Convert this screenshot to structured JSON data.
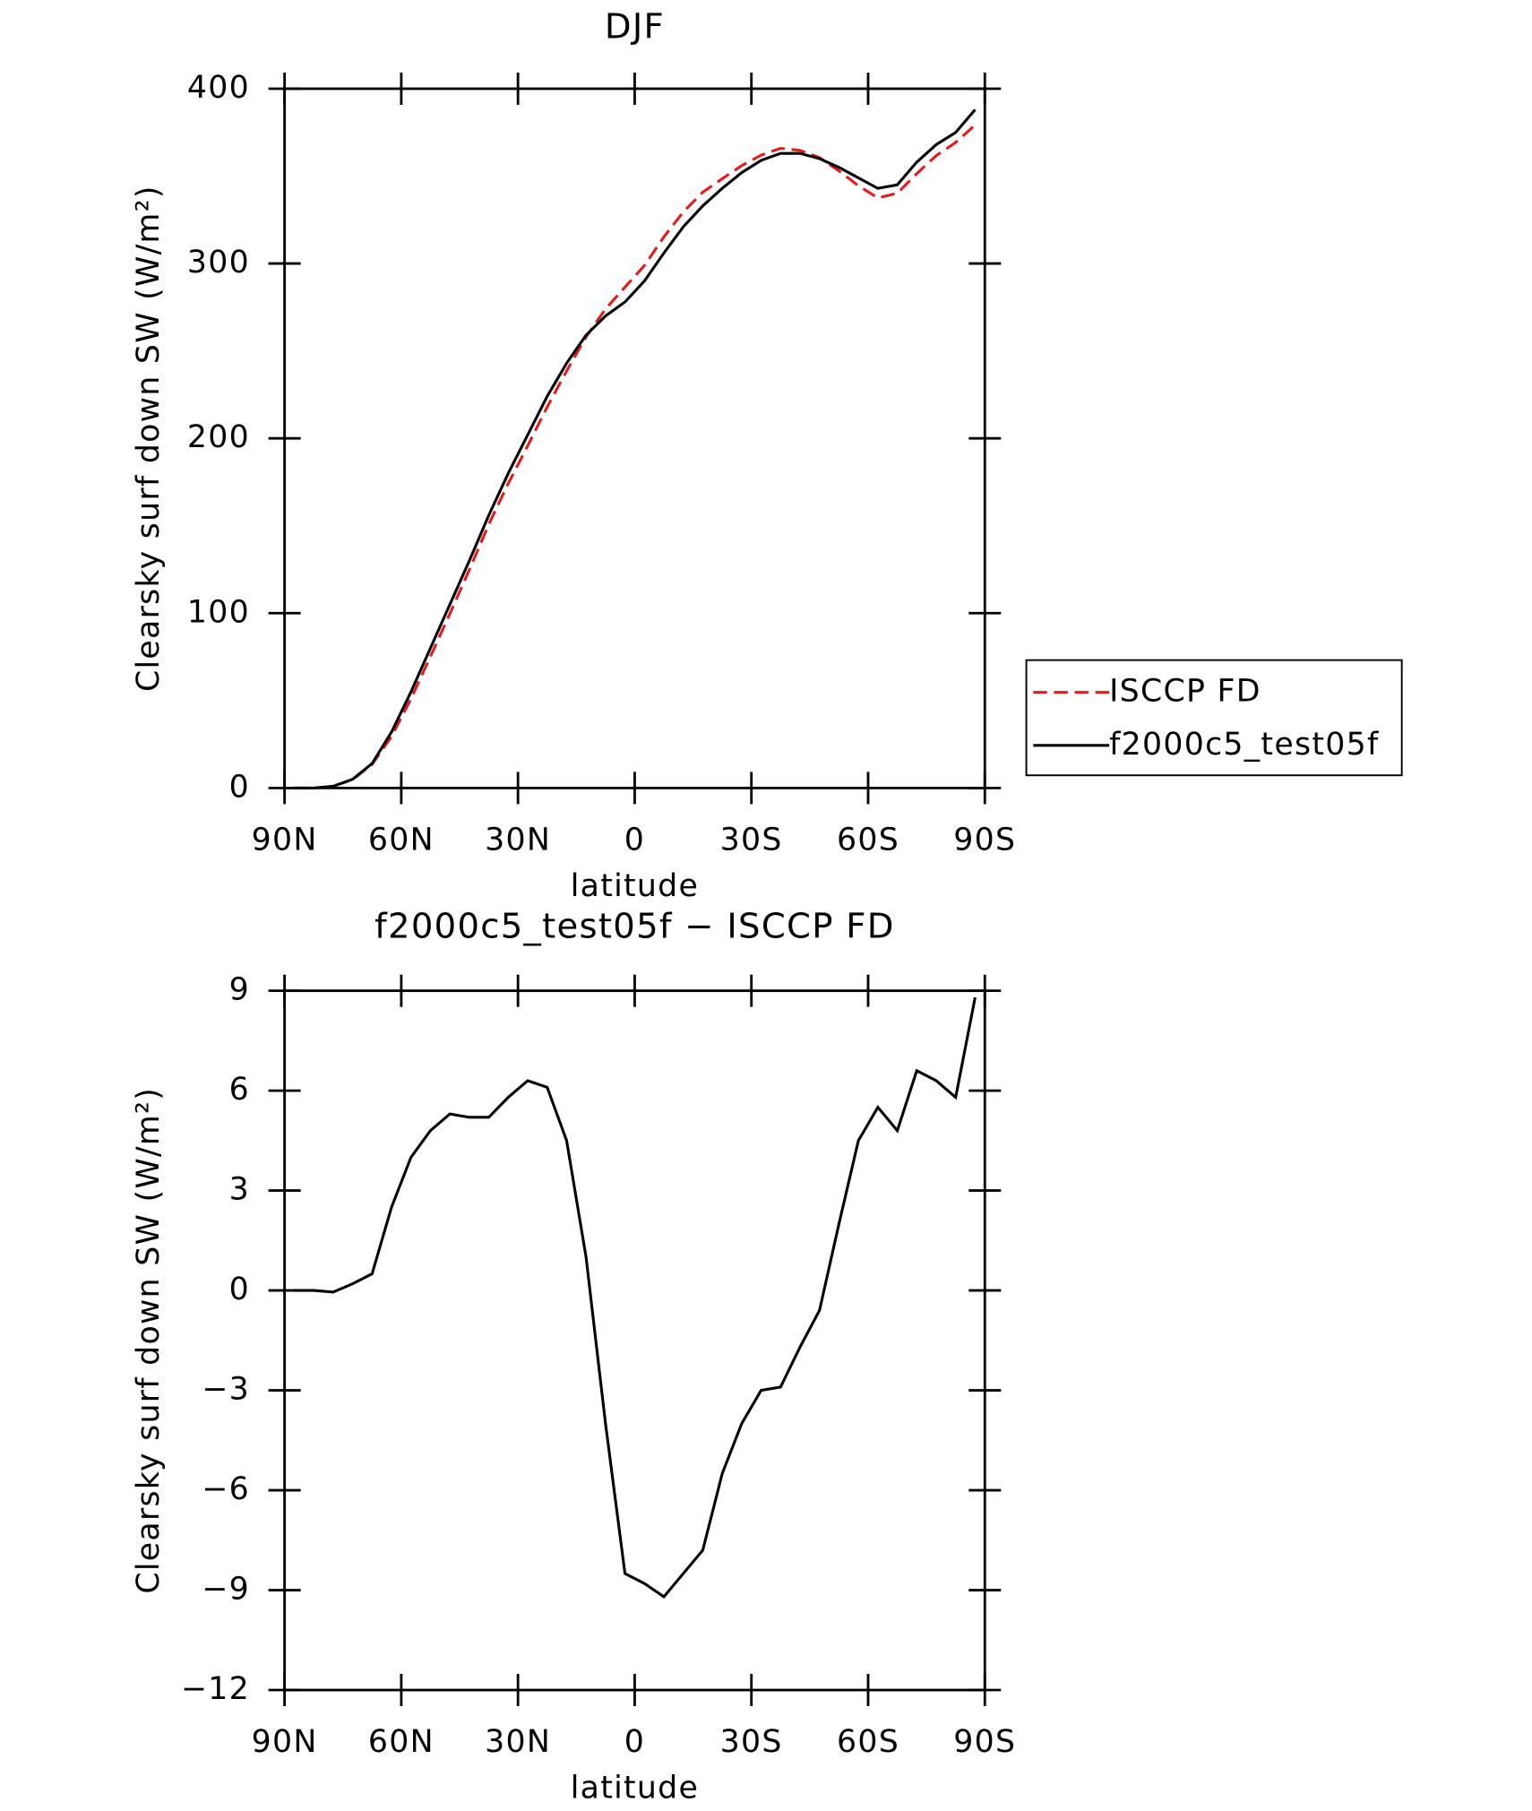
{
  "chart_data": [
    {
      "type": "line",
      "title": "DJF",
      "xlabel": "latitude",
      "ylabel": "Clearsky surf down SW (W/m²)",
      "x": [
        87.5,
        82.5,
        77.5,
        72.5,
        67.5,
        62.5,
        57.5,
        52.5,
        47.5,
        42.5,
        37.5,
        32.5,
        27.5,
        22.5,
        17.5,
        12.5,
        7.5,
        2.5,
        -2.5,
        -7.5,
        -12.5,
        -17.5,
        -22.5,
        -27.5,
        -32.5,
        -37.5,
        -42.5,
        -47.5,
        -52.5,
        -57.5,
        -62.5,
        -67.5,
        -72.5,
        -77.5,
        -82.5,
        -87.5
      ],
      "series": [
        {
          "name": "ISCCP FD",
          "color": "#e41a1c",
          "dash": true,
          "values": [
            0,
            0,
            1,
            4.8,
            13.5,
            29.5,
            51,
            75.2,
            99.7,
            124.8,
            150.8,
            174.2,
            195.7,
            217.9,
            238.5,
            258,
            274,
            286.5,
            298.8,
            315.2,
            329.5,
            340.8,
            348.5,
            356,
            362,
            365.9,
            364.7,
            360.6,
            353,
            344.5,
            337.5,
            340.2,
            351.4,
            361.7,
            369.2,
            379.2
          ]
        },
        {
          "name": "f2000c5_test05f",
          "color": "#000000",
          "dash": false,
          "values": [
            0,
            0,
            1,
            5,
            14,
            32,
            55,
            80,
            105,
            130,
            156,
            180,
            202,
            224,
            243,
            259,
            270,
            278,
            290,
            306,
            321,
            333,
            343,
            352,
            359,
            363,
            363,
            360,
            355,
            349,
            343,
            345,
            358,
            368,
            375,
            388
          ]
        }
      ],
      "xlim": [
        90,
        -90
      ],
      "xticks": [
        {
          "value": 90,
          "label": "90N"
        },
        {
          "value": 60,
          "label": "60N"
        },
        {
          "value": 30,
          "label": "30N"
        },
        0,
        {
          "value": -30,
          "label": "30S"
        },
        {
          "value": -60,
          "label": "60S"
        },
        {
          "value": -90,
          "label": "90S"
        }
      ],
      "ylim": [
        0,
        400
      ],
      "yticks": [
        0,
        100,
        200,
        300,
        400
      ],
      "legend": "right"
    },
    {
      "type": "line",
      "title": "f2000c5_test05f − ISCCP FD",
      "xlabel": "latitude",
      "ylabel": "Clearsky surf down SW (W/m²)",
      "x": [
        87.5,
        82.5,
        77.5,
        72.5,
        67.5,
        62.5,
        57.5,
        52.5,
        47.5,
        42.5,
        37.5,
        32.5,
        27.5,
        22.5,
        17.5,
        12.5,
        7.5,
        2.5,
        -2.5,
        -7.5,
        -12.5,
        -17.5,
        -22.5,
        -27.5,
        -32.5,
        -37.5,
        -42.5,
        -47.5,
        -52.5,
        -57.5,
        -62.5,
        -67.5,
        -72.5,
        -77.5,
        -82.5,
        -87.5
      ],
      "series": [
        {
          "color": "#000000",
          "dash": false,
          "values": [
            0,
            0,
            -0.05,
            0.2,
            0.5,
            2.5,
            4.0,
            4.8,
            5.3,
            5.2,
            5.2,
            5.8,
            6.3,
            6.1,
            4.5,
            1.0,
            -4.0,
            -8.5,
            -8.8,
            -9.2,
            -8.5,
            -7.8,
            -5.5,
            -4.0,
            -3.0,
            -2.9,
            -1.7,
            -0.6,
            2.0,
            4.5,
            5.5,
            4.8,
            6.6,
            6.3,
            5.8,
            8.8
          ]
        }
      ],
      "xlim": [
        90,
        -90
      ],
      "xticks": [
        {
          "value": 90,
          "label": "90N"
        },
        {
          "value": 60,
          "label": "60N"
        },
        {
          "value": 30,
          "label": "30N"
        },
        0,
        {
          "value": -30,
          "label": "30S"
        },
        {
          "value": -60,
          "label": "60S"
        },
        {
          "value": -90,
          "label": "90S"
        }
      ],
      "ylim": [
        -12,
        9
      ],
      "yticks": [
        {
          "value": -12,
          "label": "−12"
        },
        {
          "value": -9,
          "label": "−9"
        },
        {
          "value": -6,
          "label": "−6"
        },
        {
          "value": -3,
          "label": "−3"
        },
        0,
        3,
        6,
        9
      ]
    }
  ]
}
